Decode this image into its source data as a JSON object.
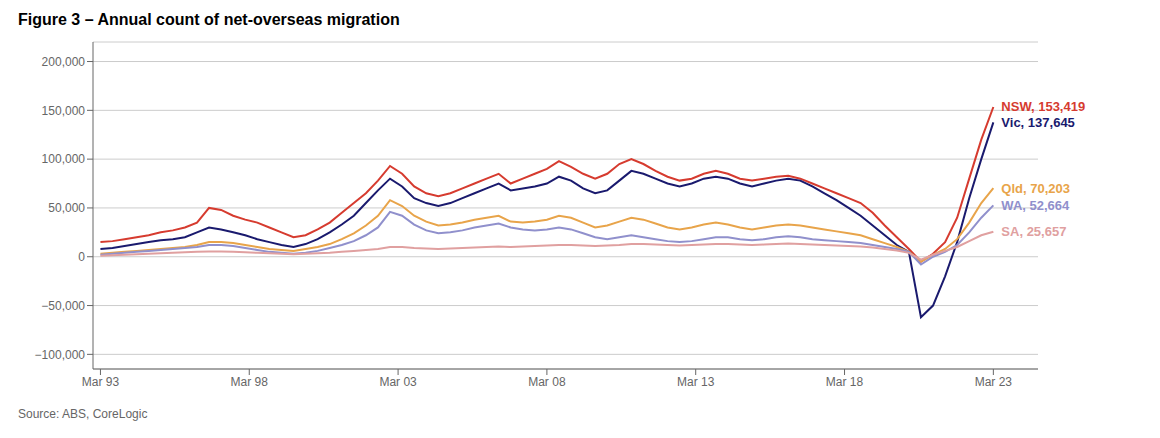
{
  "chart_data": {
    "type": "line",
    "title": "Figure 3 – Annual count of net-overseas migration",
    "subtitle": "Source: ABS, CoreLogic",
    "x": [
      0,
      1.622,
      3.243,
      4.865,
      6.486,
      8.108,
      9.73,
      11.351,
      12.973,
      14.595,
      16.216,
      17.838,
      19.459,
      21.081,
      22.703,
      24.324,
      25.946,
      27.568,
      29.189,
      30.811,
      32.432,
      34.054,
      35.676,
      37.297,
      38.919,
      40.541,
      42.162,
      43.784,
      45.405,
      47.027,
      48.649,
      50.27,
      51.892,
      53.514,
      55.135,
      56.757,
      58.378,
      60,
      61.622,
      63.243,
      64.865,
      66.486,
      68.108,
      69.73,
      71.351,
      72.973,
      74.595,
      76.216,
      77.838,
      79.459,
      81.081,
      82.703,
      84.324,
      85.946,
      87.568,
      89.189,
      90.811,
      92.432,
      94.054,
      95.676,
      97.297,
      98.919,
      100.541,
      102.162,
      103.784,
      105.405,
      107.027,
      108.649,
      110.27,
      111.892,
      113.514,
      115.135,
      116.757,
      118.378,
      120
    ],
    "xlim": [
      -1,
      126
    ],
    "xticks": [
      {
        "value": 0,
        "label": "Mar 93"
      },
      {
        "value": 20,
        "label": "Mar 98"
      },
      {
        "value": 40,
        "label": "Mar 03"
      },
      {
        "value": 60,
        "label": "Mar 08"
      },
      {
        "value": 80,
        "label": "Mar 13"
      },
      {
        "value": 100,
        "label": "Mar 18"
      },
      {
        "value": 120,
        "label": "Mar 23"
      }
    ],
    "ylim": [
      -115000,
      220000
    ],
    "yticks": [
      {
        "value": -100000,
        "label": "−100,000"
      },
      {
        "value": -50000,
        "label": "−50,000"
      },
      0,
      {
        "value": 50000,
        "label": "50,000"
      },
      {
        "value": 100000,
        "label": "100,000"
      },
      {
        "value": 150000,
        "label": "150,000"
      },
      {
        "value": 200000,
        "label": "200,000"
      }
    ],
    "grid": true,
    "series": [
      {
        "name": "NSW",
        "color": "#d63b2f",
        "values": [
          15000,
          16000,
          18000,
          20000,
          22000,
          25000,
          27000,
          30000,
          35000,
          50000,
          48000,
          42000,
          38000,
          35000,
          30000,
          25000,
          20000,
          22000,
          28000,
          35000,
          45000,
          55000,
          65000,
          78000,
          93000,
          85000,
          72000,
          65000,
          62000,
          65000,
          70000,
          75000,
          80000,
          85000,
          75000,
          80000,
          85000,
          90000,
          98000,
          92000,
          85000,
          80000,
          85000,
          95000,
          100000,
          95000,
          88000,
          82000,
          78000,
          80000,
          85000,
          88000,
          85000,
          80000,
          78000,
          80000,
          82000,
          83000,
          80000,
          75000,
          70000,
          65000,
          60000,
          55000,
          45000,
          32000,
          20000,
          8000,
          -5000,
          3000,
          15000,
          40000,
          80000,
          120000,
          153419
        ]
      },
      {
        "name": "Vic",
        "color": "#1a1a6e",
        "values": [
          8000,
          9000,
          11000,
          13000,
          15000,
          17000,
          18000,
          20000,
          25000,
          30000,
          28000,
          25000,
          22000,
          18000,
          15000,
          12000,
          10000,
          13000,
          18000,
          25000,
          33000,
          42000,
          55000,
          68000,
          80000,
          72000,
          60000,
          55000,
          52000,
          55000,
          60000,
          65000,
          70000,
          75000,
          68000,
          70000,
          72000,
          75000,
          82000,
          78000,
          70000,
          65000,
          68000,
          78000,
          88000,
          85000,
          80000,
          75000,
          72000,
          75000,
          80000,
          82000,
          80000,
          75000,
          72000,
          75000,
          78000,
          80000,
          78000,
          72000,
          65000,
          58000,
          50000,
          42000,
          32000,
          22000,
          12000,
          5000,
          -62000,
          -50000,
          -20000,
          15000,
          60000,
          100000,
          137645
        ]
      },
      {
        "name": "Qld",
        "color": "#e8a44a",
        "values": [
          3000,
          4000,
          5000,
          6000,
          7000,
          8000,
          9000,
          10000,
          12000,
          15000,
          15000,
          14000,
          12000,
          10000,
          8000,
          7000,
          6000,
          8000,
          10000,
          13000,
          18000,
          24000,
          32000,
          42000,
          58000,
          52000,
          42000,
          36000,
          32000,
          33000,
          35000,
          38000,
          40000,
          42000,
          36000,
          35000,
          36000,
          38000,
          42000,
          40000,
          35000,
          30000,
          32000,
          36000,
          40000,
          38000,
          34000,
          30000,
          28000,
          30000,
          33000,
          35000,
          33000,
          30000,
          28000,
          30000,
          32000,
          33000,
          32000,
          30000,
          28000,
          26000,
          24000,
          22000,
          18000,
          14000,
          10000,
          5000,
          -5000,
          2000,
          8000,
          18000,
          35000,
          55000,
          70203
        ]
      },
      {
        "name": "WA",
        "color": "#9090cc",
        "values": [
          2000,
          3000,
          4000,
          5000,
          6000,
          7000,
          8000,
          9000,
          10000,
          12000,
          12000,
          11000,
          9000,
          7000,
          5000,
          4000,
          3000,
          4000,
          6000,
          9000,
          12000,
          16000,
          22000,
          30000,
          46000,
          42000,
          33000,
          27000,
          24000,
          25000,
          27000,
          30000,
          32000,
          34000,
          30000,
          28000,
          27000,
          28000,
          30000,
          28000,
          24000,
          20000,
          18000,
          20000,
          22000,
          20000,
          18000,
          16000,
          15000,
          16000,
          18000,
          20000,
          20000,
          18000,
          17000,
          18000,
          20000,
          21000,
          20000,
          18000,
          17000,
          16000,
          15000,
          14000,
          12000,
          10000,
          8000,
          5000,
          -8000,
          0,
          5000,
          12000,
          25000,
          40000,
          52664
        ]
      },
      {
        "name": "SA",
        "color": "#e0a0a0",
        "values": [
          1000,
          1500,
          2000,
          2500,
          3000,
          3500,
          4000,
          4500,
          5000,
          5500,
          5500,
          5000,
          4500,
          4000,
          3500,
          3000,
          2500,
          3000,
          3500,
          4000,
          5000,
          6000,
          7000,
          8000,
          10000,
          10000,
          9000,
          8500,
          8000,
          8500,
          9000,
          9500,
          10000,
          10500,
          10000,
          10500,
          11000,
          11500,
          12000,
          12000,
          11500,
          11000,
          11500,
          12000,
          13000,
          13000,
          12500,
          12000,
          11500,
          12000,
          12500,
          13000,
          13000,
          12500,
          12000,
          12500,
          13000,
          13500,
          13000,
          12500,
          12000,
          11500,
          11000,
          10500,
          9500,
          8000,
          6500,
          4000,
          -3000,
          2000,
          6000,
          10000,
          16000,
          22000,
          25657
        ]
      }
    ],
    "annotations": [
      {
        "text": "NSW, 153,419",
        "series": "NSW"
      },
      {
        "text": "Vic, 137,645",
        "series": "Vic"
      },
      {
        "text": "Qld, 70,203",
        "series": "Qld"
      },
      {
        "text": "WA, 52,664",
        "series": "WA"
      },
      {
        "text": "SA, 25,657",
        "series": "SA"
      }
    ]
  }
}
